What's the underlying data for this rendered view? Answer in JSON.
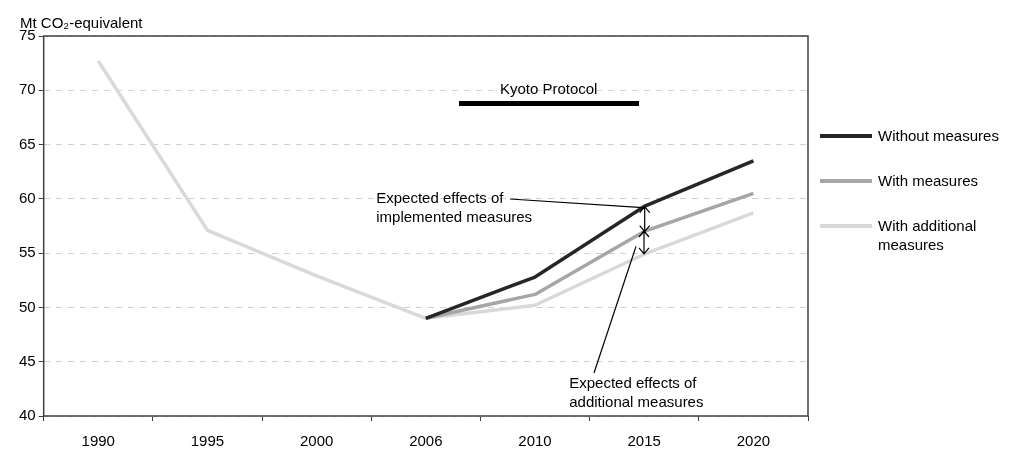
{
  "chart_data": {
    "type": "line",
    "ylabel": "Mt CO₂-equivalent",
    "categories": [
      "1990",
      "1995",
      "2000",
      "2006",
      "2010",
      "2015",
      "2020"
    ],
    "series": [
      {
        "name": "Without measures",
        "color": "#262626",
        "values": [
          null,
          null,
          null,
          49.0,
          52.8,
          59.3,
          63.5
        ]
      },
      {
        "name": "With measures",
        "color": "#a6a6a6",
        "values": [
          null,
          null,
          null,
          49.0,
          51.2,
          57.0,
          60.5
        ]
      },
      {
        "name": "With additional measures",
        "color": "#d9d9d9",
        "values": [
          72.7,
          57.1,
          52.9,
          49.0,
          50.2,
          54.9,
          58.7
        ]
      }
    ],
    "ylim": [
      40,
      75
    ],
    "yticks": [
      40,
      45,
      50,
      55,
      60,
      65,
      70,
      75
    ],
    "grid": "y",
    "legend": "right",
    "marker": "none",
    "line_style": "solid",
    "annotations": [
      "Kyoto Protocol",
      {
        "text": "Expected effects of implemented measures",
        "x": "2015",
        "y": 59.3
      },
      "Expected effects of additional measures"
    ]
  }
}
